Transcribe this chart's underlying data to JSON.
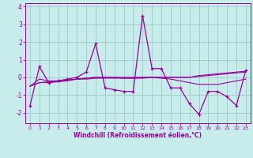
{
  "x": [
    0,
    1,
    2,
    3,
    4,
    5,
    6,
    7,
    8,
    9,
    10,
    11,
    12,
    13,
    14,
    15,
    16,
    17,
    18,
    19,
    20,
    21,
    22,
    23
  ],
  "y_main": [
    -1.6,
    0.6,
    -0.3,
    -0.2,
    -0.1,
    0.0,
    0.3,
    1.9,
    -0.6,
    -0.7,
    -0.8,
    -0.8,
    3.5,
    0.5,
    0.5,
    -0.6,
    -0.6,
    -1.5,
    -2.1,
    -0.8,
    -0.8,
    -1.1,
    -1.6,
    0.4
  ],
  "y_trend1": [
    -0.5,
    -0.1,
    -0.2,
    -0.2,
    -0.15,
    -0.1,
    -0.05,
    0.0,
    0.0,
    0.0,
    0.0,
    0.0,
    0.0,
    0.0,
    0.0,
    0.0,
    0.0,
    0.0,
    0.1,
    0.15,
    0.2,
    0.25,
    0.3,
    0.35
  ],
  "y_trend2": [
    -0.5,
    -0.3,
    -0.3,
    -0.25,
    -0.2,
    -0.1,
    -0.05,
    0.0,
    0.0,
    0.0,
    -0.05,
    -0.05,
    0.0,
    0.0,
    -0.05,
    -0.1,
    -0.2,
    -0.3,
    -0.4,
    -0.4,
    -0.4,
    -0.3,
    -0.2,
    -0.1
  ],
  "y_trend3": [
    -0.5,
    -0.3,
    -0.25,
    -0.2,
    -0.15,
    -0.1,
    -0.1,
    -0.05,
    -0.05,
    -0.05,
    -0.05,
    -0.05,
    -0.05,
    0.0,
    0.0,
    0.0,
    0.0,
    0.0,
    0.05,
    0.1,
    0.15,
    0.2,
    0.25,
    0.3
  ],
  "line_color": "#990099",
  "bg_color": "#c8ecec",
  "grid_color": "#a0c8c8",
  "xlabel": "Windchill (Refroidissement éolien,°C)",
  "xlim": [
    -0.5,
    23.5
  ],
  "ylim": [
    -2.6,
    4.2
  ],
  "yticks": [
    -2,
    -1,
    0,
    1,
    2,
    3,
    4
  ],
  "xticks": [
    0,
    1,
    2,
    3,
    4,
    5,
    6,
    7,
    8,
    9,
    10,
    11,
    12,
    13,
    14,
    15,
    16,
    17,
    18,
    19,
    20,
    21,
    22,
    23
  ]
}
